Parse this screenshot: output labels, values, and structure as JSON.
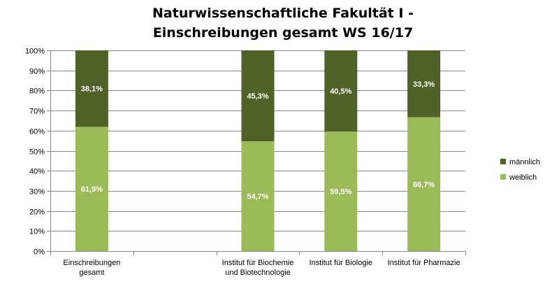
{
  "chart_data": {
    "type": "bar",
    "stacked": true,
    "percent_stacked": true,
    "title_lines": [
      "Naturwissenschaftliche Fakultät I  -",
      "Einschreibungen gesamt WS 16/17"
    ],
    "categories": [
      [
        "Einschreibungen",
        "gesamt"
      ],
      [
        ""
      ],
      [
        "Institut für Biochemie",
        "und Biotechnologie"
      ],
      [
        "Institut für  Biologie"
      ],
      [
        "Institut für Pharmazie"
      ]
    ],
    "series": [
      {
        "name": "weiblich",
        "color": "#9bbb59",
        "values": [
          61.9,
          null,
          54.7,
          59.5,
          66.7
        ],
        "labels": [
          "61,9%",
          "",
          "54,7%",
          "59,5%",
          "66,7%"
        ]
      },
      {
        "name": "männlich",
        "color": "#4f6228",
        "values": [
          38.1,
          null,
          45.3,
          40.5,
          33.3
        ],
        "labels": [
          "38,1%",
          "",
          "45,3%",
          "40,5%",
          "33,3%"
        ]
      }
    ],
    "ylim": [
      0,
      100
    ],
    "yticks": [
      "0%",
      "10%",
      "20%",
      "30%",
      "40%",
      "50%",
      "60%",
      "70%",
      "80%",
      "90%",
      "100%"
    ],
    "grid": true,
    "legend_position": "right"
  }
}
